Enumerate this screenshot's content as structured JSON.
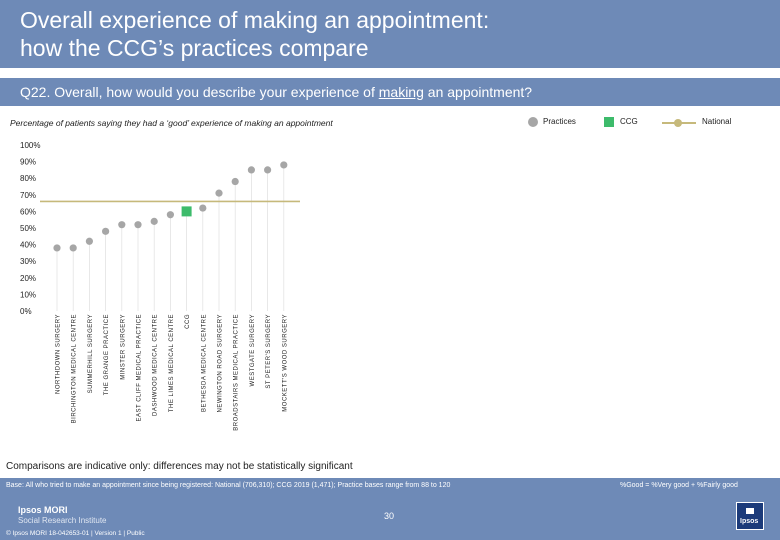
{
  "header": {
    "title_line1": "Overall experience of making an appointment:",
    "title_line2": "how the CCG’s practices compare"
  },
  "question": {
    "prefix": "Q22. Overall, how would you describe your experience of ",
    "underlined": "making",
    "suffix": " an appointment?"
  },
  "subtitle": "Percentage of patients saying they had  a ‘good’ experience of making an appointment",
  "legend": {
    "practices": "Practices",
    "ccg": "CCG",
    "national": "National"
  },
  "colors": {
    "header_bg": "#6e8ab7",
    "practice_dot": "#a6a6a6",
    "ccg_marker": "#3dbb6b",
    "national_line": "#c6b97b"
  },
  "chart_data": {
    "type": "scatter",
    "title": "Percentage of patients saying they had  a ‘good’ experience of making an appointment",
    "ylim": [
      0,
      100
    ],
    "y_ticks": [
      "0%",
      "10%",
      "20%",
      "30%",
      "40%",
      "50%",
      "60%",
      "70%",
      "80%",
      "90%",
      "100%"
    ],
    "national": 66,
    "categories": [
      "NORTHDOWN SURGERY",
      "BIRCHINGTON MEDICAL CENTRE",
      "SUMMERHILL SURGERY",
      "THE GRANGE PRACTICE",
      "MINSTER SURGERY",
      "EAST CLIFF MEDICAL PRACTICE",
      "DASHWOOD MEDICAL CENTRE",
      "THE LIMES MEDICAL CENTRE",
      "CCG",
      "BETHESDA MEDICAL CENTRE",
      "NEWINGTON ROAD SURGERY",
      "BROADSTAIRS MEDICAL PRACTICE",
      "WESTGATE SURGERY",
      "ST PETER'S SURGERY",
      "MOCKETT'S WOOD SURGERY"
    ],
    "values": [
      38,
      38,
      42,
      48,
      52,
      52,
      54,
      58,
      60,
      62,
      71,
      78,
      85,
      85,
      88
    ],
    "ccg_index": 8
  },
  "note": "Comparisons are indicative only: differences may not be statistically significant",
  "footer": {
    "base": "Base: All who tried to make an appointment since being registered: National (706,310); CCG 2019 (1,471); Practice bases range from 88 to 120",
    "good_def": "%Good = %Very good + %Fairly good",
    "page": "30",
    "logo_line1": "Ipsos MORI",
    "logo_line2": "Social Research Institute",
    "copyright": "© Ipsos MORI     18-042653-01 | Version 1 | Public",
    "brand": "Ipsos"
  }
}
